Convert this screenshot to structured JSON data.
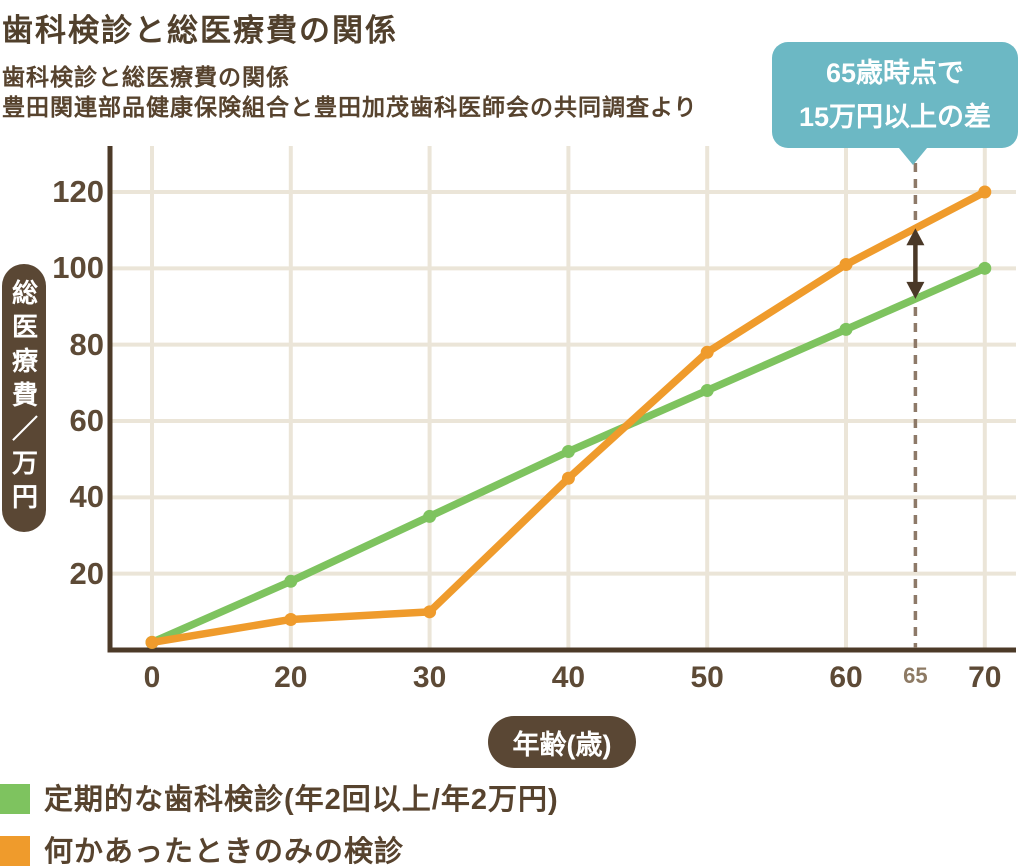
{
  "header": {
    "title": "歯科検診と総医療費の関係",
    "subtitle": "歯科検診と総医療費の関係",
    "source": "豊田関連部品健康保険組合と豊田加茂歯科医師会の共同調査より"
  },
  "callout": {
    "line1": "65歳時点で",
    "line2": "15万円以上の差"
  },
  "axes": {
    "y_label": "総医療費／万円",
    "x_label": "年齢(歳)",
    "y_ticks": [
      20,
      40,
      60,
      80,
      100,
      120
    ],
    "x_ticks": [
      0,
      20,
      30,
      40,
      50,
      60,
      70
    ],
    "x_special_tick": 65
  },
  "legend": [
    {
      "label": "定期的な歯科検診(年2回以上/年2万円)",
      "color": "#7ec35f"
    },
    {
      "label": "何かあったときのみの検診",
      "color": "#ef9b2c"
    }
  ],
  "colors": {
    "green": "#7ec35f",
    "orange": "#ef9b2c",
    "teal": "#6cb8c4",
    "brown_dark": "#51402c",
    "brown_text": "#57432e",
    "pill_bg": "#5a4734",
    "grid": "#ebe5d8",
    "axis": "#4c3a28",
    "dashed": "#8d7968",
    "arrow": "#4a3827",
    "tick": "#5d4a36",
    "tick_special": "#8d7a64"
  },
  "chart_data": {
    "type": "line",
    "title": "歯科検診と総医療費の関係",
    "xlabel": "年齢(歳)",
    "ylabel": "総医療費/万円",
    "x": [
      0,
      20,
      30,
      40,
      50,
      60,
      70
    ],
    "series": [
      {
        "name": "定期的な歯科検診(年2回以上/年2万円)",
        "color": "#7ec35f",
        "values": [
          2,
          18,
          35,
          52,
          68,
          84,
          100
        ]
      },
      {
        "name": "何かあったときのみの検診",
        "color": "#ef9b2c",
        "values": [
          2,
          8,
          10,
          45,
          78,
          101,
          120
        ]
      }
    ],
    "ylim": [
      0,
      130
    ],
    "grid": true,
    "legend_position": "bottom-left",
    "annotation": {
      "age": 65,
      "label": "65歳時点で15万円以上の差"
    }
  }
}
